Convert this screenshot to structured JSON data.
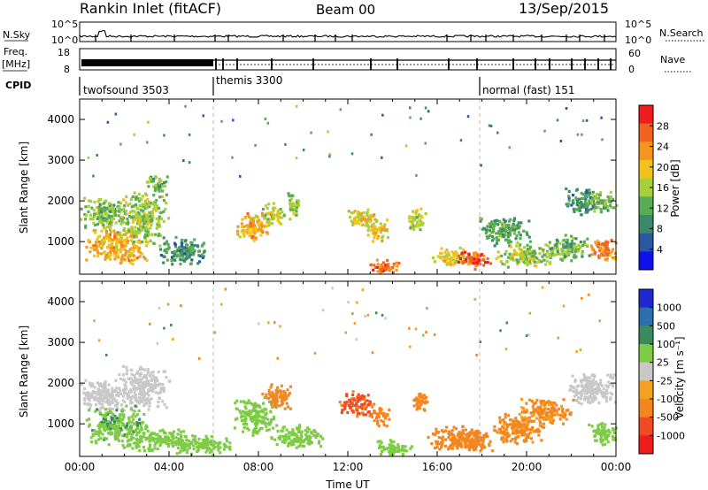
{
  "header": {
    "title": "Rankin Inlet (fitACF)",
    "beam": "Beam 00",
    "date": "13/Sep/2015"
  },
  "strips": {
    "nsky": {
      "left_label": "N.Sky",
      "right_label": "N.Search",
      "top_tick": "10^5",
      "bottom_tick": "10^0"
    },
    "freq": {
      "left_label": "Freq.",
      "unit": "[MHz]",
      "right_label": "Nave",
      "left_ticks": [
        "18",
        "8"
      ],
      "right_ticks": [
        "60",
        "0"
      ]
    },
    "cpid": {
      "label": "CPID",
      "modes": [
        {
          "name": "twofsound 3503",
          "start_hour": 0,
          "end_hour": 6
        },
        {
          "name": "themis 3300",
          "start_hour": 6,
          "end_hour": 18
        },
        {
          "name": "normal (fast) 151",
          "start_hour": 18,
          "end_hour": 24
        }
      ]
    }
  },
  "colors": {
    "power": [
      "#1010ee",
      "#2a58a0",
      "#3a8a6a",
      "#59ab54",
      "#a6cf3a",
      "#f2c21a",
      "#f5951e",
      "#f26322",
      "#ee1c1c"
    ],
    "velocity": [
      "#ee1c1c",
      "#f24a22",
      "#f3861f",
      "#f5a020",
      "#c8c8c8",
      "#7ecb45",
      "#3b8a5c",
      "#2d6fae",
      "#1e2ad0"
    ]
  },
  "chart_data": [
    {
      "type": "heatmap",
      "ylabel": "Slant Range [km]",
      "xlabel": "",
      "xlim": [
        0,
        24
      ],
      "ylim": [
        200,
        4500
      ],
      "yticks": [
        "1000",
        "2000",
        "3000",
        "4000"
      ],
      "colorbar_label": "Power [dB]",
      "colorbar_ticks": [
        "4",
        "8",
        "12",
        "16",
        "20",
        "24",
        "28"
      ],
      "blobs": [
        {
          "t": 1.0,
          "r": 1700,
          "dt": 1.1,
          "dr": 450,
          "v": 14
        },
        {
          "t": 1.6,
          "r": 900,
          "dt": 1.5,
          "dr": 450,
          "v": 21
        },
        {
          "t": 2.8,
          "r": 1600,
          "dt": 1.2,
          "dr": 700,
          "v": 15
        },
        {
          "t": 3.4,
          "r": 2450,
          "dt": 0.6,
          "dr": 220,
          "v": 13
        },
        {
          "t": 4.6,
          "r": 800,
          "dt": 1.2,
          "dr": 350,
          "v": 10
        },
        {
          "t": 7.7,
          "r": 1400,
          "dt": 0.8,
          "dr": 400,
          "v": 21
        },
        {
          "t": 8.6,
          "r": 1700,
          "dt": 0.6,
          "dr": 300,
          "v": 16
        },
        {
          "t": 9.5,
          "r": 1900,
          "dt": 0.3,
          "dr": 400,
          "v": 14
        },
        {
          "t": 12.6,
          "r": 1600,
          "dt": 0.7,
          "dr": 300,
          "v": 19
        },
        {
          "t": 13.3,
          "r": 1300,
          "dt": 0.6,
          "dr": 300,
          "v": 18
        },
        {
          "t": 13.6,
          "r": 400,
          "dt": 0.8,
          "dr": 200,
          "v": 25
        },
        {
          "t": 15.0,
          "r": 1600,
          "dt": 0.5,
          "dr": 300,
          "v": 17
        },
        {
          "t": 16.6,
          "r": 650,
          "dt": 0.9,
          "dr": 250,
          "v": 18
        },
        {
          "t": 17.6,
          "r": 600,
          "dt": 0.8,
          "dr": 250,
          "v": 27
        },
        {
          "t": 19.0,
          "r": 1300,
          "dt": 1.2,
          "dr": 400,
          "v": 11
        },
        {
          "t": 20.0,
          "r": 700,
          "dt": 1.5,
          "dr": 300,
          "v": 15
        },
        {
          "t": 21.8,
          "r": 850,
          "dt": 1.0,
          "dr": 350,
          "v": 13
        },
        {
          "t": 22.5,
          "r": 2000,
          "dt": 0.9,
          "dr": 350,
          "v": 10
        },
        {
          "t": 23.4,
          "r": 800,
          "dt": 0.7,
          "dr": 300,
          "v": 24
        },
        {
          "t": 23.4,
          "r": 2000,
          "dt": 0.6,
          "dr": 300,
          "v": 14
        }
      ]
    },
    {
      "type": "heatmap",
      "ylabel": "Slant Range [km]",
      "xlabel": "Time UT",
      "xlim": [
        0,
        24
      ],
      "ylim": [
        200,
        4500
      ],
      "xticks": [
        "00:00",
        "04:00",
        "08:00",
        "12:00",
        "16:00",
        "20:00",
        "00:00"
      ],
      "yticks": [
        "1000",
        "2000",
        "3000",
        "4000"
      ],
      "colorbar_label": "Velocity [m s⁻¹]",
      "colorbar_ticks": [
        "1000",
        "500",
        "100",
        "25",
        "-25",
        "-100",
        "-500",
        "-1000"
      ],
      "blobs": [
        {
          "t": 1.0,
          "r": 1750,
          "dt": 1.1,
          "dr": 450,
          "v": 0
        },
        {
          "t": 2.8,
          "r": 1900,
          "dt": 1.2,
          "dr": 600,
          "v": 0
        },
        {
          "t": 1.6,
          "r": 1000,
          "dt": 1.5,
          "dr": 500,
          "v": 80
        },
        {
          "t": 3.4,
          "r": 650,
          "dt": 1.8,
          "dr": 300,
          "v": 60
        },
        {
          "t": 5.5,
          "r": 500,
          "dt": 1.5,
          "dr": 250,
          "v": 60
        },
        {
          "t": 7.8,
          "r": 1200,
          "dt": 1.0,
          "dr": 500,
          "v": 40
        },
        {
          "t": 8.8,
          "r": 1700,
          "dt": 0.7,
          "dr": 350,
          "v": -200
        },
        {
          "t": 9.7,
          "r": 700,
          "dt": 1.3,
          "dr": 300,
          "v": 50
        },
        {
          "t": 12.4,
          "r": 1500,
          "dt": 0.9,
          "dr": 350,
          "v": -600
        },
        {
          "t": 13.4,
          "r": 1200,
          "dt": 0.5,
          "dr": 250,
          "v": -300
        },
        {
          "t": 14.0,
          "r": 450,
          "dt": 1.0,
          "dr": 200,
          "v": 60
        },
        {
          "t": 15.2,
          "r": 1600,
          "dt": 0.4,
          "dr": 300,
          "v": -200
        },
        {
          "t": 16.8,
          "r": 650,
          "dt": 1.3,
          "dr": 350,
          "v": -300
        },
        {
          "t": 17.7,
          "r": 600,
          "dt": 0.9,
          "dr": 300,
          "v": -200
        },
        {
          "t": 19.5,
          "r": 900,
          "dt": 1.2,
          "dr": 400,
          "v": -150
        },
        {
          "t": 20.8,
          "r": 1300,
          "dt": 1.3,
          "dr": 400,
          "v": -120
        },
        {
          "t": 22.9,
          "r": 1900,
          "dt": 1.2,
          "dr": 450,
          "v": 0
        },
        {
          "t": 23.4,
          "r": 800,
          "dt": 0.7,
          "dr": 300,
          "v": 60
        }
      ]
    }
  ]
}
